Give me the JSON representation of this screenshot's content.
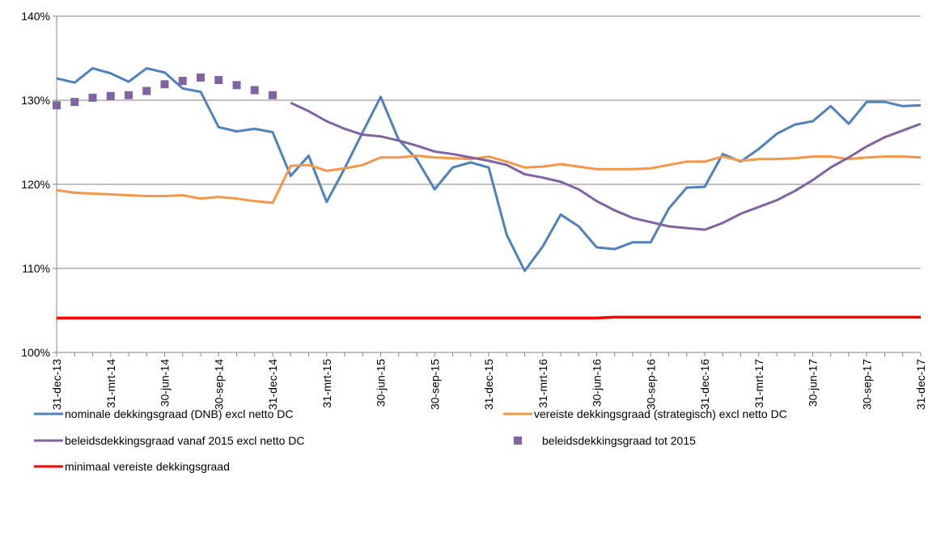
{
  "chart_data": {
    "type": "line",
    "categories": [
      "31-dec-13",
      null,
      null,
      "31-mrt-14",
      null,
      null,
      "30-jun-14",
      null,
      null,
      "30-sep-14",
      null,
      null,
      "31-dec-14",
      null,
      null,
      "31-mrt-15",
      null,
      null,
      "30-jun-15",
      null,
      null,
      "30-sep-15",
      null,
      null,
      "31-dec-15",
      null,
      null,
      "31-mrt-16",
      null,
      null,
      "30-jun-16",
      null,
      null,
      "30-sep-16",
      null,
      null,
      "31-dec-16",
      null,
      null,
      "31-mrt-17",
      null,
      null,
      "30-jun-17",
      null,
      null,
      "30-sep-17",
      null,
      null,
      "31-dec-17"
    ],
    "ylim": [
      100,
      140
    ],
    "yticks": [
      {
        "value": 100,
        "label": "100%"
      },
      {
        "value": 110,
        "label": "110%"
      },
      {
        "value": 120,
        "label": "120%"
      },
      {
        "value": 130,
        "label": "130%"
      },
      {
        "value": 140,
        "label": "140%"
      }
    ],
    "grid": true,
    "series": [
      {
        "name": "nominale dekkingsgraad (DNB) excl netto DC",
        "color": "#4f81bd",
        "style": "line",
        "values": [
          132.6,
          132.1,
          133.8,
          133.2,
          132.2,
          133.8,
          133.3,
          131.4,
          131.0,
          126.8,
          126.3,
          126.6,
          126.2,
          121.0,
          123.4,
          117.9,
          121.9,
          126.2,
          130.4,
          125.3,
          123.0,
          119.4,
          122.0,
          122.6,
          122.0,
          114.0,
          109.7,
          112.6,
          116.4,
          115.0,
          112.5,
          112.3,
          113.1,
          113.1,
          117.1,
          119.6,
          119.7,
          123.6,
          122.7,
          124.2,
          126.0,
          127.1,
          127.5,
          129.3,
          127.2,
          129.8,
          129.8,
          129.3,
          129.4
        ]
      },
      {
        "name": "vereiste dekkingsgraad (strategisch) excl netto DC",
        "color": "#f79646",
        "style": "line",
        "values": [
          119.3,
          119.0,
          118.9,
          118.8,
          118.7,
          118.6,
          118.6,
          118.7,
          118.3,
          118.5,
          118.3,
          118.0,
          117.8,
          122.2,
          122.3,
          121.6,
          121.9,
          122.3,
          123.2,
          123.2,
          123.4,
          123.2,
          123.1,
          123.0,
          123.3,
          122.7,
          122.0,
          122.1,
          122.4,
          122.1,
          121.8,
          121.8,
          121.8,
          121.9,
          122.3,
          122.7,
          122.7,
          123.3,
          122.8,
          123.0,
          123.0,
          123.1,
          123.3,
          123.3,
          123.0,
          123.2,
          123.3,
          123.3,
          123.2
        ]
      },
      {
        "name": "beleidsdekkingsgraad vanaf 2015 excl netto DC",
        "color": "#8064a2",
        "style": "line",
        "values": [
          null,
          null,
          null,
          null,
          null,
          null,
          null,
          null,
          null,
          null,
          null,
          null,
          null,
          129.7,
          128.7,
          127.5,
          126.6,
          125.9,
          125.7,
          125.2,
          124.6,
          123.9,
          123.6,
          123.2,
          122.8,
          122.3,
          121.2,
          120.8,
          120.3,
          119.4,
          118.0,
          116.9,
          116.0,
          115.5,
          115.0,
          114.8,
          114.6,
          115.4,
          116.5,
          117.3,
          118.1,
          119.2,
          120.5,
          122.0,
          123.2,
          124.5,
          125.6,
          126.4,
          127.2
        ]
      },
      {
        "name": "beleidsdekkingsgraad tot 2015",
        "color": "#8064a2",
        "style": "marker",
        "values": [
          129.4,
          129.8,
          130.3,
          130.5,
          130.6,
          131.1,
          131.9,
          132.3,
          132.7,
          132.4,
          131.8,
          131.2,
          130.6,
          null,
          null,
          null,
          null,
          null,
          null,
          null,
          null,
          null,
          null,
          null,
          null,
          null,
          null,
          null,
          null,
          null,
          null,
          null,
          null,
          null,
          null,
          null,
          null,
          null,
          null,
          null,
          null,
          null,
          null,
          null,
          null,
          null,
          null,
          null,
          null
        ]
      },
      {
        "name": "minimaal vereiste dekkingsgraad",
        "color": "#ff0000",
        "style": "line",
        "values": [
          104.1,
          104.1,
          104.1,
          104.1,
          104.1,
          104.1,
          104.1,
          104.1,
          104.1,
          104.1,
          104.1,
          104.1,
          104.1,
          104.1,
          104.1,
          104.1,
          104.1,
          104.1,
          104.1,
          104.1,
          104.1,
          104.1,
          104.1,
          104.1,
          104.1,
          104.1,
          104.1,
          104.1,
          104.1,
          104.1,
          104.1,
          104.2,
          104.2,
          104.2,
          104.2,
          104.2,
          104.2,
          104.2,
          104.2,
          104.2,
          104.2,
          104.2,
          104.2,
          104.2,
          104.2,
          104.2,
          104.2,
          104.2,
          104.2
        ]
      }
    ]
  }
}
